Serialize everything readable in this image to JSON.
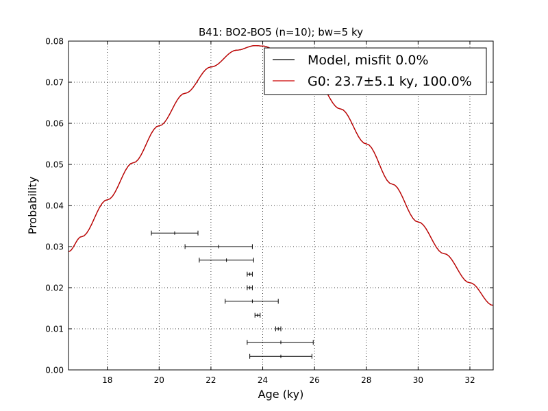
{
  "chart_data": {
    "type": "line",
    "title": "B41: BO2-BO5 (n=10); bw=5 ky",
    "xlabel": "Age (ky)",
    "ylabel": "Probability",
    "xlim": [
      16.5,
      32.9
    ],
    "ylim": [
      0,
      0.08
    ],
    "x_ticks": [
      18,
      20,
      22,
      24,
      26,
      28,
      30,
      32
    ],
    "x_tick_labels": [
      "18",
      "20",
      "22",
      "24",
      "26",
      "28",
      "30",
      "32"
    ],
    "y_ticks": [
      0,
      0.01,
      0.02,
      0.03,
      0.04,
      0.05,
      0.06,
      0.07,
      0.08
    ],
    "y_tick_labels": [
      "0.00",
      "0.01",
      "0.02",
      "0.03",
      "0.04",
      "0.05",
      "0.06",
      "0.07",
      "0.08"
    ],
    "grid": true,
    "legend_position": "top-right",
    "series": [
      {
        "name": "Model, misfit 0.0%",
        "color": "#000000",
        "x": [
          16.5,
          17,
          18,
          19,
          20,
          21,
          22,
          23,
          23.7,
          24,
          25,
          26,
          27,
          28,
          29,
          30,
          31,
          32,
          32.9
        ],
        "y": [
          0.0288,
          0.0324,
          0.0414,
          0.0504,
          0.0594,
          0.0673,
          0.0737,
          0.0778,
          0.0789,
          0.0788,
          0.076,
          0.0708,
          0.0635,
          0.055,
          0.0452,
          0.036,
          0.0283,
          0.0212,
          0.0157
        ]
      },
      {
        "name": "G0: 23.7±5.1 ky, 100.0%",
        "color": "#cc0000",
        "x": [
          16.5,
          17,
          18,
          19,
          20,
          21,
          22,
          23,
          23.7,
          24,
          25,
          26,
          27,
          28,
          29,
          30,
          31,
          32,
          32.9
        ],
        "y": [
          0.0288,
          0.0324,
          0.0414,
          0.0504,
          0.0594,
          0.0673,
          0.0737,
          0.0778,
          0.0789,
          0.0788,
          0.076,
          0.0708,
          0.0635,
          0.055,
          0.0452,
          0.036,
          0.0283,
          0.0212,
          0.0157
        ]
      }
    ],
    "error_bars": [
      {
        "y": 0.0333,
        "center": 20.6,
        "low": 19.7,
        "high": 21.5
      },
      {
        "y": 0.03,
        "center": 22.3,
        "low": 21.0,
        "high": 23.6
      },
      {
        "y": 0.0267,
        "center": 22.6,
        "low": 21.55,
        "high": 23.65
      },
      {
        "y": 0.0233,
        "center": 23.5,
        "low": 23.4,
        "high": 23.6
      },
      {
        "y": 0.02,
        "center": 23.5,
        "low": 23.4,
        "high": 23.6
      },
      {
        "y": 0.0167,
        "center": 23.6,
        "low": 22.55,
        "high": 24.6
      },
      {
        "y": 0.0133,
        "center": 23.8,
        "low": 23.7,
        "high": 23.9
      },
      {
        "y": 0.01,
        "center": 24.6,
        "low": 24.5,
        "high": 24.7
      },
      {
        "y": 0.0067,
        "center": 24.7,
        "low": 23.4,
        "high": 25.95
      },
      {
        "y": 0.0033,
        "center": 24.7,
        "low": 23.5,
        "high": 25.9
      }
    ]
  }
}
